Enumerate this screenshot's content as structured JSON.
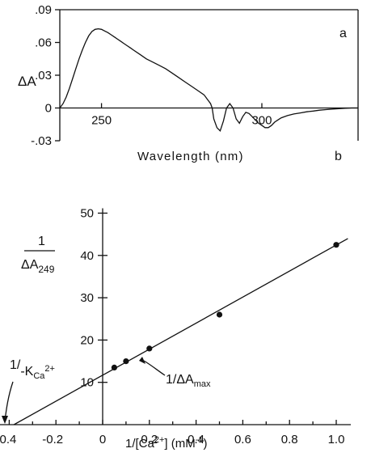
{
  "chart_data": [
    {
      "panel": "a",
      "type": "line",
      "ylabel": "ΔA",
      "xlabel": "Wavelength (nm)",
      "xlim": [
        237,
        330
      ],
      "ylim": [
        -0.03,
        0.09
      ],
      "yticks": [
        ".09",
        ".06",
        ".03",
        "0",
        "-.03"
      ],
      "ytick_values": [
        0.09,
        0.06,
        0.03,
        0,
        -0.03
      ],
      "xticks": [
        "250",
        "300"
      ],
      "xtick_values": [
        250,
        300
      ],
      "series": [
        {
          "x": [
            237,
            238,
            239,
            240,
            241,
            242,
            243,
            244,
            245,
            246,
            247,
            248,
            249,
            250,
            251,
            252,
            253,
            254,
            255,
            256,
            257,
            258,
            259,
            260,
            262,
            264,
            266,
            268,
            270,
            272,
            274,
            276,
            278,
            280,
            282,
            283,
            283.5,
            284,
            284.5,
            285,
            286,
            287,
            288,
            289,
            290,
            291,
            292,
            293,
            294,
            295,
            296,
            297,
            298,
            299,
            300,
            301,
            302,
            303,
            304,
            305,
            306,
            308,
            310,
            312,
            314,
            316,
            318,
            320,
            322,
            324,
            326,
            328,
            330
          ],
          "y": [
            0.0,
            0.004,
            0.01,
            0.018,
            0.027,
            0.036,
            0.045,
            0.053,
            0.06,
            0.066,
            0.07,
            0.072,
            0.0725,
            0.072,
            0.0705,
            0.069,
            0.067,
            0.065,
            0.063,
            0.061,
            0.059,
            0.057,
            0.055,
            0.053,
            0.049,
            0.045,
            0.042,
            0.039,
            0.036,
            0.032,
            0.028,
            0.024,
            0.02,
            0.016,
            0.012,
            0.008,
            0.006,
            0.004,
            0.0,
            -0.01,
            -0.018,
            -0.021,
            -0.012,
            0.0,
            0.004,
            0.0,
            -0.01,
            -0.014,
            -0.008,
            -0.004,
            -0.005,
            -0.008,
            -0.011,
            -0.014,
            -0.016,
            -0.018,
            -0.018,
            -0.016,
            -0.013,
            -0.011,
            -0.009,
            -0.007,
            -0.0055,
            -0.0045,
            -0.0035,
            -0.0028,
            -0.002,
            -0.0015,
            -0.001,
            -0.0006,
            -0.0003,
            0.0,
            0.0
          ]
        }
      ],
      "annotations": [
        "a"
      ]
    },
    {
      "panel": "b",
      "type": "scatter",
      "ylabel": "1 / ΔA249",
      "xlabel": "1/[Ca2+] (mM-1)",
      "xlim": [
        -0.4,
        1.1
      ],
      "ylim": [
        0,
        50
      ],
      "yticks": [
        "10",
        "20",
        "30",
        "40",
        "50"
      ],
      "ytick_values": [
        10,
        20,
        30,
        40,
        50
      ],
      "xticks": [
        "-0.4",
        "-0.2",
        "0",
        "0.2",
        "0.4",
        "0.6",
        "0.8",
        "1.0"
      ],
      "xtick_values": [
        -0.4,
        -0.2,
        0,
        0.2,
        0.4,
        0.6,
        0.8,
        1.0
      ],
      "points": {
        "x": [
          0.05,
          0.1,
          0.2,
          0.5,
          1.0
        ],
        "y": [
          13.5,
          15,
          18,
          26,
          42.5
        ]
      },
      "fit_line": {
        "x": [
          -0.38,
          1.05
        ],
        "y": [
          0,
          44
        ]
      },
      "annotations": [
        "b",
        "1/KCa2+",
        "1/ΔAmax"
      ]
    }
  ],
  "labels": {
    "panel_a": "a",
    "panel_b": "b",
    "a_ylabel": "ΔA",
    "a_xlabel": "Wavelength (nm)",
    "b_ylabel_num": "1",
    "b_ylabel_den": "ΔA",
    "b_ylabel_sub": "249",
    "b_xlabel_main": "1/[Ca",
    "b_xlabel_sup": "2+",
    "b_xlabel_tail": "] (mM",
    "b_xlabel_sup2": "-1",
    "b_xlabel_end": ")",
    "ann_k_pre": "1/",
    "ann_k_main": "-K",
    "ann_k_sub": "Ca",
    "ann_k_sup": "2+",
    "ann_dmax_main": "1/ΔA",
    "ann_dmax_sub": "max"
  }
}
